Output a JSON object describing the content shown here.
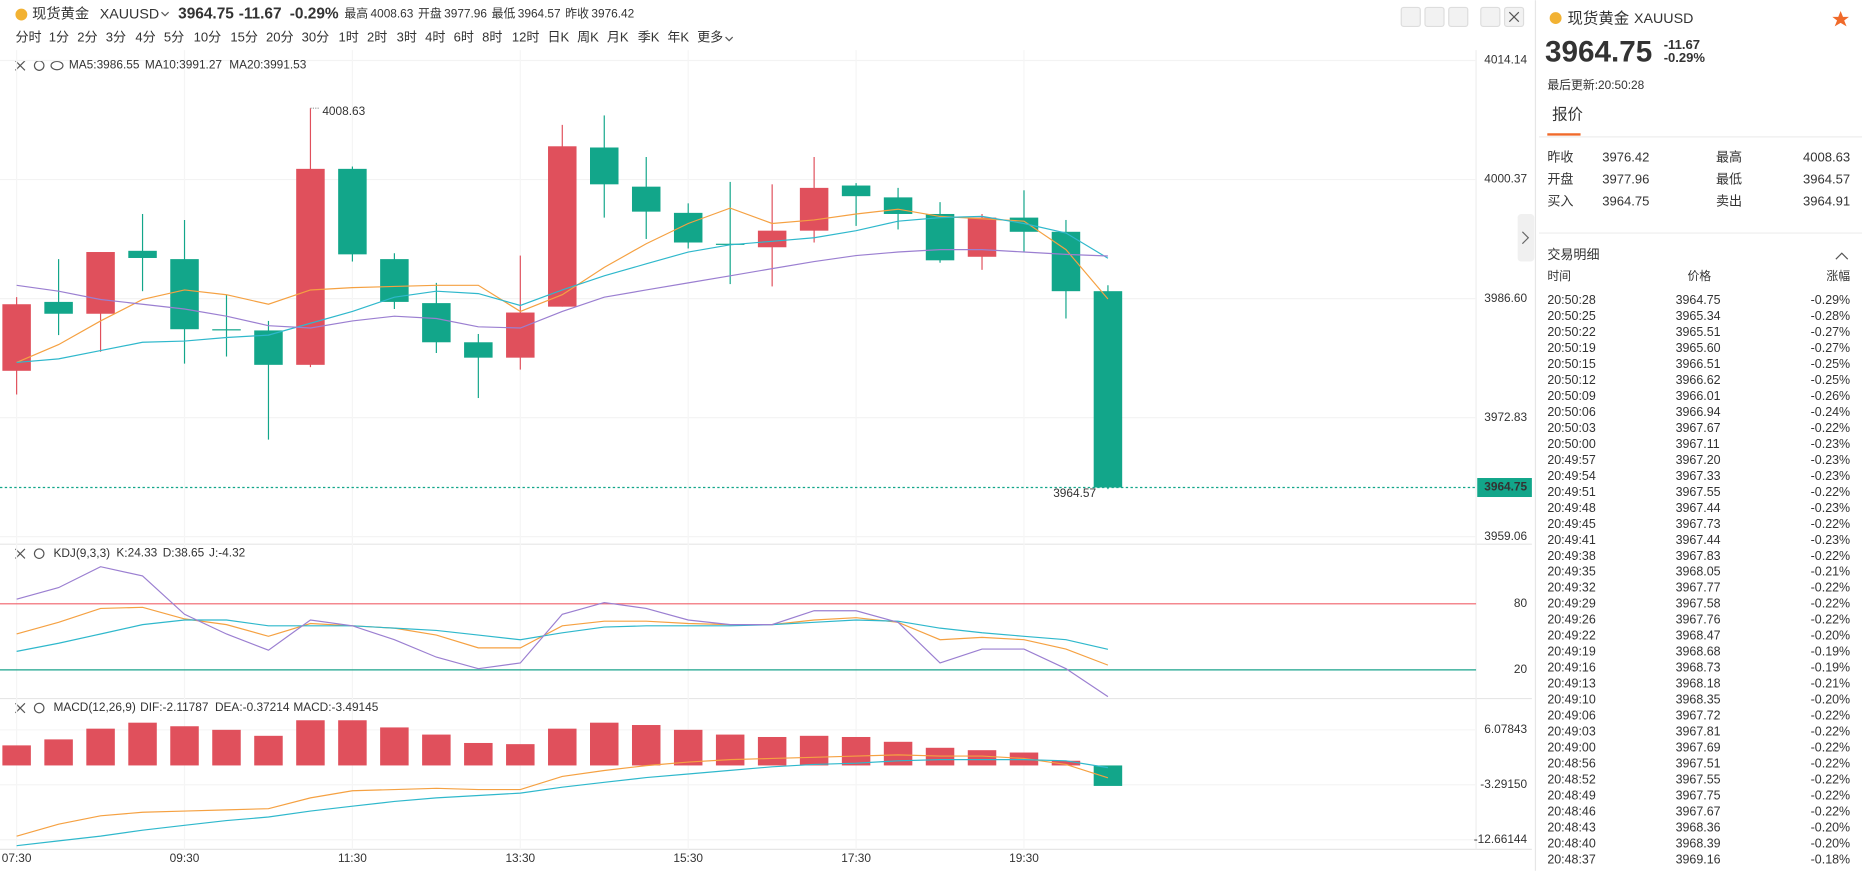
{
  "header": {
    "name": "现货黄金",
    "symbol": "XAUUSD",
    "price": 3964.75,
    "change": -11.67,
    "change_pct": "-0.29%",
    "stats": [
      {
        "label": "最高",
        "value": 4008.63,
        "color": "#e0505c"
      },
      {
        "label": "开盘",
        "value": 3977.96,
        "color": "#e0505c"
      },
      {
        "label": "最低",
        "value": 3964.57,
        "color": "#12a68a"
      },
      {
        "label": "昨收",
        "value": 3976.42,
        "color": "#888888"
      }
    ]
  },
  "timeframes": [
    "分时",
    "1分",
    "2分",
    "3分",
    "4分",
    "5分",
    "10分",
    "15分",
    "20分",
    "30分",
    "1时",
    "2时",
    "3时",
    "4时",
    "6时",
    "8时",
    "12时",
    "日K",
    "周K",
    "月K",
    "季K",
    "年K",
    "更多"
  ],
  "active_timeframe": "30分",
  "chart_data": [
    {
      "type": "candlestick",
      "categories": [
        "07:30",
        null,
        null,
        null,
        "09:30",
        null,
        null,
        null,
        "11:30",
        null,
        null,
        null,
        "13:30",
        null,
        null,
        null,
        "15:30",
        null,
        null,
        null,
        "17:30",
        null,
        null,
        null,
        "19:30",
        null,
        null
      ],
      "open": [
        3978.25,
        3986.22,
        3984.85,
        3992.13,
        3991.17,
        3983.06,
        3982.92,
        3978.94,
        4001.61,
        3991.17,
        3986.08,
        3981.55,
        3979.77,
        3985.67,
        4004.08,
        3999.55,
        3996.52,
        3992.95,
        3992.54,
        3994.46,
        3999.68,
        3998.31,
        3996.39,
        3991.44,
        3995.97,
        3994.33,
        3987.46
      ],
      "high": [
        3986.77,
        3991.17,
        3991.99,
        3996.39,
        3995.7,
        3987.05,
        3984.02,
        4008.63,
        4001.88,
        3991.85,
        3988.42,
        3982.51,
        3991.58,
        4006.69,
        4007.79,
        4002.98,
        3997.62,
        4000.1,
        3999.82,
        4002.98,
        3999.96,
        3999.41,
        3997.76,
        3996.39,
        3999.13,
        3995.7,
        3988.15
      ],
      "low": [
        3975.51,
        3982.38,
        3980.45,
        3987.46,
        3979.08,
        3979.9,
        3970.29,
        3978.67,
        3990.89,
        3985.4,
        3980.31,
        3975.1,
        3978.39,
        3985.67,
        3995.97,
        3993.5,
        3992.4,
        3988.28,
        3988.01,
        3993.09,
        3995.01,
        3994.6,
        3990.75,
        3989.93,
        3991.99,
        3984.3,
        3964.57
      ],
      "close": [
        3985.95,
        3984.85,
        3991.99,
        3991.3,
        3983.06,
        3982.92,
        3978.94,
        4001.61,
        3991.72,
        3986.22,
        3981.55,
        3979.77,
        3984.99,
        4004.22,
        3999.82,
        3996.66,
        3993.09,
        3992.82,
        3994.46,
        3999.41,
        3998.45,
        3996.39,
        3991.03,
        3995.97,
        3994.33,
        3987.46,
        3964.75
      ],
      "up_color": "#e0505c",
      "down_color": "#12a68a",
      "ma_series": [
        {
          "name": "MA5",
          "color": "#f5a142",
          "values": [
            3979.22,
            3981.28,
            3984.02,
            3986.5,
            3987.6,
            3987.05,
            3985.95,
            3987.6,
            3987.87,
            3988.01,
            3988.14,
            3988.14,
            3985.12,
            3987.05,
            3990.21,
            3992.95,
            3995.29,
            3997.07,
            3995.29,
            3995.7,
            3996.39,
            3996.94,
            3996.11,
            3995.84,
            3995.56,
            3992.27,
            3986.55
          ]
        },
        {
          "name": "MA10",
          "color": "#2fb8cc",
          "values": [
            3979.22,
            3979.63,
            3980.59,
            3981.55,
            3981.69,
            3982.1,
            3982.38,
            3983.75,
            3985.12,
            3986.77,
            3987.46,
            3987.18,
            3985.81,
            3987.6,
            3989.24,
            3990.62,
            3991.99,
            3992.82,
            3993.23,
            3993.64,
            3994.46,
            3995.56,
            3995.97,
            3996.11,
            3995.29,
            3994.19,
            3991.27
          ]
        },
        {
          "name": "MA20",
          "color": "#9b7fd1",
          "values": [
            3988.14,
            3987.46,
            3986.5,
            3985.95,
            3985.4,
            3984.57,
            3983.47,
            3983.2,
            3984.02,
            3984.57,
            3984.3,
            3983.34,
            3983.2,
            3985.12,
            3986.77,
            3987.6,
            3988.42,
            3989.24,
            3990.07,
            3990.89,
            3991.58,
            3991.99,
            3992.27,
            3992.27,
            3991.99,
            3991.72,
            3991.53
          ]
        }
      ],
      "ylim": [
        3958.61,
        4015.34
      ],
      "yticks": [
        4014.14,
        4000.37,
        {
          "value": 3986.6,
          "label": "3986.60"
        },
        3972.83,
        3959.06
      ],
      "grid": true
    },
    {
      "type": "line",
      "title": "KDJ(9,3,3)",
      "series": [
        {
          "name": "K",
          "color": "#f5a142",
          "values": [
            52.6,
            63.2,
            75.8,
            76.8,
            66.3,
            61.1,
            50.5,
            62.1,
            60,
            57.9,
            51.6,
            40,
            40,
            60,
            64.2,
            64.2,
            62.1,
            61.1,
            61.1,
            65.3,
            67.4,
            63.2,
            47.4,
            49.5,
            47.4,
            38.9,
            24.33
          ]
        },
        {
          "name": "D",
          "color": "#2fb8cc",
          "values": [
            36.8,
            44.2,
            52.6,
            61.1,
            65.3,
            65.3,
            60,
            60,
            60,
            57.9,
            55.8,
            51.6,
            47.4,
            53.7,
            58.9,
            60,
            60,
            60,
            61.1,
            63.2,
            65.3,
            64.2,
            57.9,
            53.7,
            50.5,
            47.4,
            38.65
          ]
        },
        {
          "name": "J",
          "color": "#9b7fd1",
          "values": [
            84.2,
            94.7,
            113.7,
            105.3,
            70.5,
            52.6,
            37.9,
            65.3,
            60,
            47.4,
            31.6,
            21.1,
            26.3,
            70.5,
            81.1,
            75.8,
            65.3,
            61.1,
            61.1,
            73.7,
            73.7,
            63.2,
            26.3,
            38.9,
            38.9,
            21.1,
            -4.32
          ]
        }
      ],
      "ylim": [
        -6,
        132
      ],
      "yticks": [
        20,
        80
      ],
      "tick_colors": [
        "#1aa38c",
        "#f0606a"
      ]
    },
    {
      "type": "macd",
      "title": "MACD(12,26,9)",
      "series": [
        {
          "name": "DIF",
          "color": "#f5a142",
          "values": [
            -12.05,
            -10.01,
            -8.59,
            -7.98,
            -7.77,
            -7.57,
            -7.37,
            -5.53,
            -4.31,
            -4.11,
            -3.9,
            -4.11,
            -4.11,
            -1.87,
            -0.86,
            -0.03,
            0.58,
            0.99,
            1.19,
            1.39,
            1.6,
            1.8,
            1.6,
            1.6,
            1.19,
            0.17,
            -2.11787
          ]
        },
        {
          "name": "DEA",
          "color": "#2fb8cc",
          "values": [
            -13.68,
            -12.86,
            -12.05,
            -11.03,
            -10.21,
            -9.4,
            -8.79,
            -7.77,
            -6.95,
            -6.14,
            -5.53,
            -5.12,
            -4.72,
            -3.7,
            -2.88,
            -2.07,
            -1.46,
            -0.84,
            -0.23,
            0.17,
            0.38,
            0.79,
            0.99,
            0.99,
            0.99,
            0.79,
            -0.37214
          ]
        }
      ],
      "bars": {
        "name": "MACD",
        "values": [
          3.42,
          4.44,
          6.27,
          7.29,
          6.68,
          6.07,
          5.05,
          7.7,
          7.7,
          6.48,
          5.26,
          3.83,
          3.63,
          6.27,
          7.29,
          6.89,
          6.07,
          5.26,
          4.85,
          5.05,
          4.85,
          4.03,
          3.01,
          2.6,
          2.2,
          0.8,
          -3.49145
        ],
        "up_color": "#e0505c",
        "down_color": "#12a68a"
      },
      "ylim": [
        -14.3,
        11
      ],
      "yticks": [
        6.07843,
        {
          "value": -3.2915,
          "label": "-3.29150"
        },
        -12.66144
      ]
    }
  ],
  "quote_panel": {
    "name": "现货黄金",
    "symbol": "XAUUSD",
    "price": 3964.75,
    "change": -11.67,
    "change_pct": "-0.29%",
    "updated": "最后更新:20:50:28",
    "tab": "报价",
    "stats": [
      {
        "label": "昨收",
        "value": "3976.42",
        "color": "#333333"
      },
      {
        "label": "最高",
        "value": "4008.63",
        "color": "#e0505c"
      },
      {
        "label": "开盘",
        "value": "3977.96",
        "color": "#e0505c"
      },
      {
        "label": "最低",
        "value": "3964.57",
        "color": "#12a68a"
      },
      {
        "label": "买入",
        "value": "3964.75",
        "color": "#333333"
      },
      {
        "label": "卖出",
        "value": "3964.91",
        "color": "#333333"
      }
    ],
    "trades_title": "交易明细",
    "trades_columns": [
      "时间",
      "价格",
      "涨幅"
    ],
    "trades": [
      [
        "20:50:28",
        "3964.75",
        "-0.29%"
      ],
      [
        "20:50:25",
        "3965.34",
        "-0.28%"
      ],
      [
        "20:50:22",
        "3965.51",
        "-0.27%"
      ],
      [
        "20:50:19",
        "3965.60",
        "-0.27%"
      ],
      [
        "20:50:15",
        "3966.51",
        "-0.25%"
      ],
      [
        "20:50:12",
        "3966.62",
        "-0.25%"
      ],
      [
        "20:50:09",
        "3966.01",
        "-0.26%"
      ],
      [
        "20:50:06",
        "3966.94",
        "-0.24%"
      ],
      [
        "20:50:03",
        "3967.67",
        "-0.22%"
      ],
      [
        "20:50:00",
        "3967.11",
        "-0.23%"
      ],
      [
        "20:49:57",
        "3967.20",
        "-0.23%"
      ],
      [
        "20:49:54",
        "3967.33",
        "-0.23%"
      ],
      [
        "20:49:51",
        "3967.55",
        "-0.22%"
      ],
      [
        "20:49:48",
        "3967.44",
        "-0.23%"
      ],
      [
        "20:49:45",
        "3967.73",
        "-0.22%"
      ],
      [
        "20:49:41",
        "3967.44",
        "-0.23%"
      ],
      [
        "20:49:38",
        "3967.83",
        "-0.22%"
      ],
      [
        "20:49:35",
        "3968.05",
        "-0.21%"
      ],
      [
        "20:49:32",
        "3967.77",
        "-0.22%"
      ],
      [
        "20:49:29",
        "3967.58",
        "-0.22%"
      ],
      [
        "20:49:26",
        "3967.76",
        "-0.22%"
      ],
      [
        "20:49:22",
        "3968.47",
        "-0.20%"
      ],
      [
        "20:49:19",
        "3968.68",
        "-0.19%"
      ],
      [
        "20:49:16",
        "3968.73",
        "-0.19%"
      ],
      [
        "20:49:13",
        "3968.18",
        "-0.21%"
      ],
      [
        "20:49:10",
        "3968.35",
        "-0.20%"
      ],
      [
        "20:49:06",
        "3967.72",
        "-0.22%"
      ],
      [
        "20:49:03",
        "3967.81",
        "-0.22%"
      ],
      [
        "20:49:00",
        "3967.69",
        "-0.22%"
      ],
      [
        "20:48:56",
        "3967.51",
        "-0.22%"
      ],
      [
        "20:48:52",
        "3967.55",
        "-0.22%"
      ],
      [
        "20:48:49",
        "3967.75",
        "-0.22%"
      ],
      [
        "20:48:46",
        "3967.67",
        "-0.22%"
      ],
      [
        "20:48:43",
        "3968.36",
        "-0.20%"
      ],
      [
        "20:48:40",
        "3968.39",
        "-0.20%"
      ],
      [
        "20:48:37",
        "3969.16",
        "-0.18%"
      ]
    ]
  }
}
